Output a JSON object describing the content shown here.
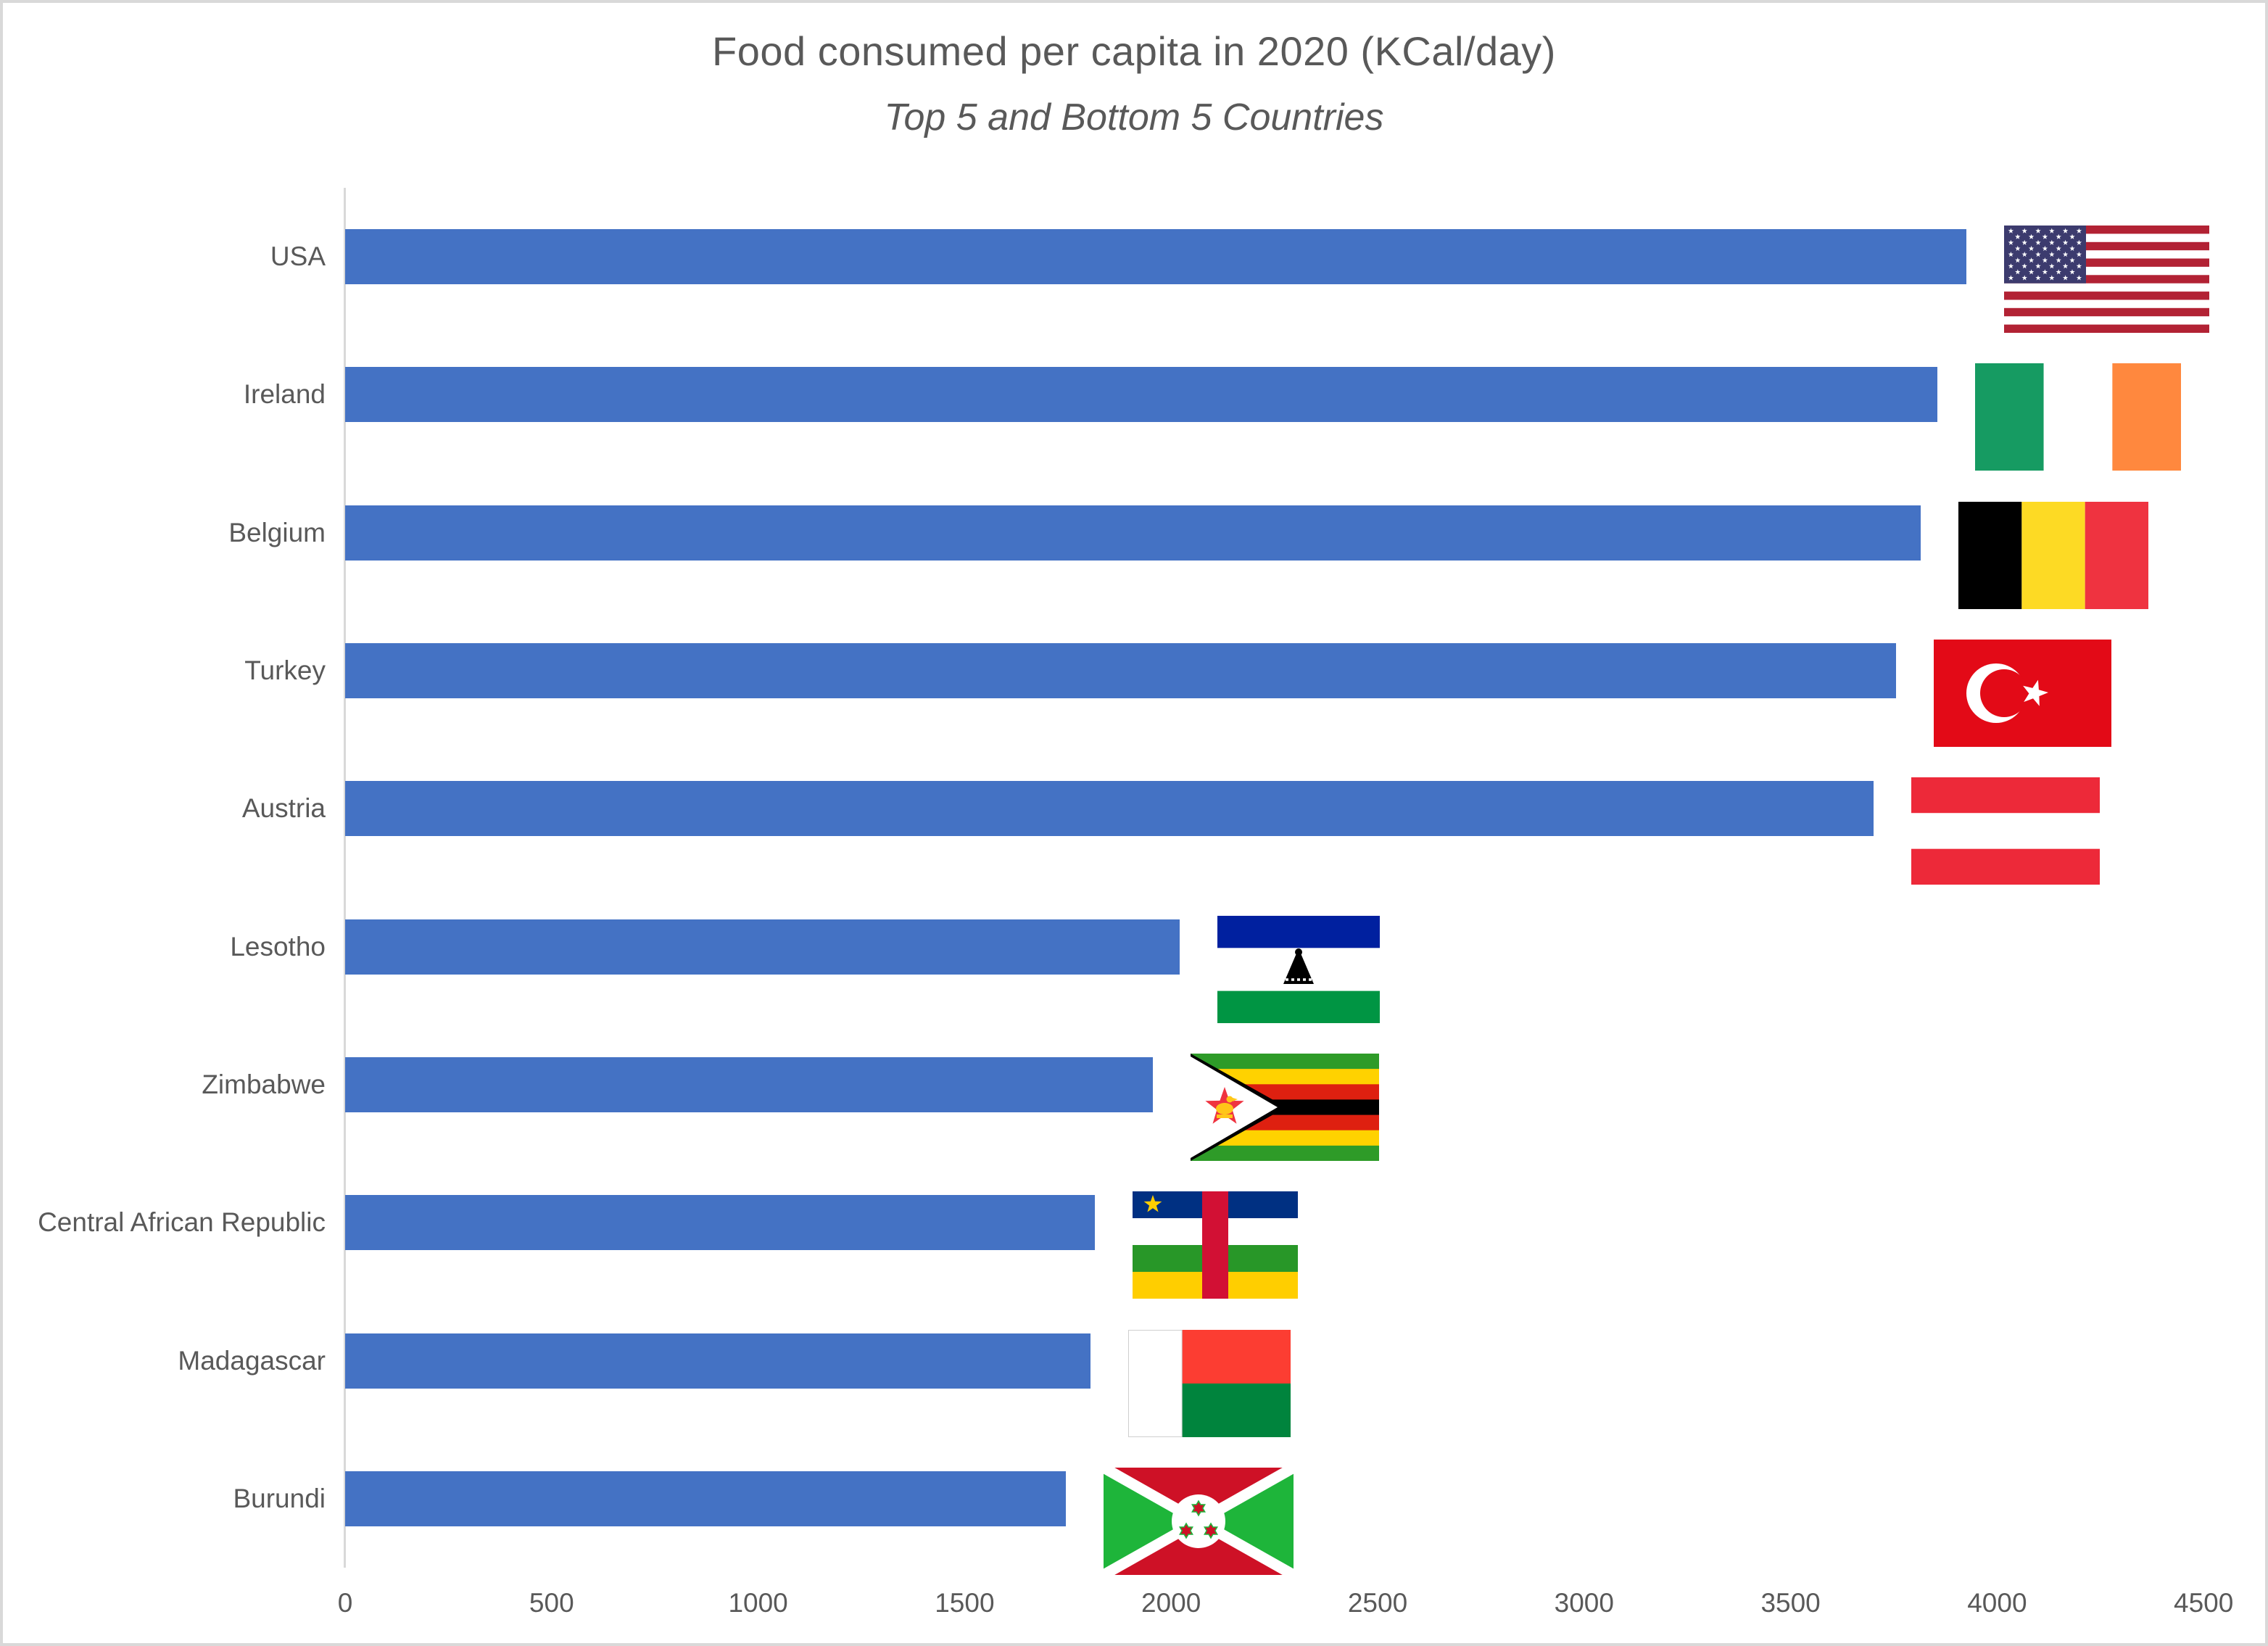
{
  "chart_data": {
    "type": "bar",
    "orientation": "horizontal",
    "title": "Food consumed per capita in 2020 (KCal/day)",
    "subtitle": "Top 5 and Bottom 5 Countries",
    "categories": [
      "USA",
      "Ireland",
      "Belgium",
      "Turkey",
      "Austria",
      "Lesotho",
      "Zimbabwe",
      "Central African Republic",
      "Madagascar",
      "Burundi"
    ],
    "values": [
      3925,
      3855,
      3815,
      3755,
      3700,
      2020,
      1955,
      1815,
      1805,
      1745
    ],
    "flag_icons": [
      "usa-flag-icon",
      "ireland-flag-icon",
      "belgium-flag-icon",
      "turkey-flag-icon",
      "austria-flag-icon",
      "lesotho-flag-icon",
      "zimbabwe-flag-icon",
      "central-african-republic-flag-icon",
      "madagascar-flag-icon",
      "burundi-flag-icon"
    ],
    "x_ticks": [
      0,
      500,
      1000,
      1500,
      2000,
      2500,
      3000,
      3500,
      4000,
      4500
    ],
    "xlim": [
      0,
      4500
    ],
    "xlabel": "",
    "ylabel": "",
    "grid": false,
    "legend": "none",
    "bar_color": "#4472C4",
    "text_color": "#595959",
    "axis_line_color": "#D9D9D9"
  }
}
